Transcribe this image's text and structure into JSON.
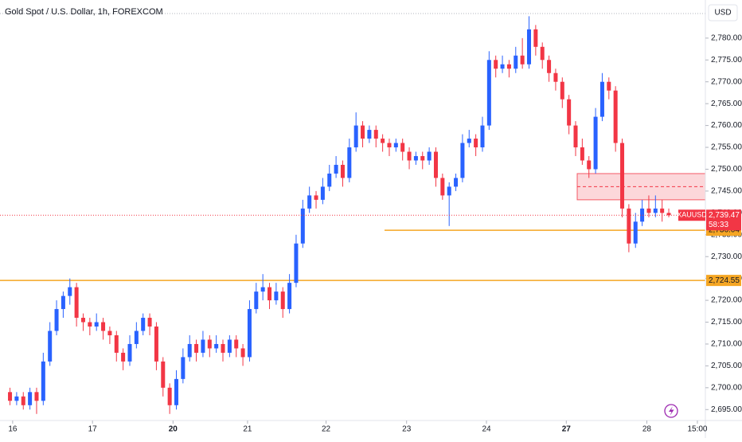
{
  "chart_data": {
    "type": "candlestick",
    "title": "Gold Spot / U.S. Dollar, 1h, FOREXCOM",
    "currency": "USD",
    "up_color": "#2962ff",
    "down_color": "#f23645",
    "grid": false,
    "ylim": [
      2692.5,
      2788.5
    ],
    "xlim": [
      -1.5,
      104.5
    ],
    "yticks": [
      {
        "value": 2695,
        "label": "2,695.00"
      },
      {
        "value": 2700,
        "label": "2,700.00"
      },
      {
        "value": 2705,
        "label": "2,705.00"
      },
      {
        "value": 2710,
        "label": "2,710.00"
      },
      {
        "value": 2715,
        "label": "2,715.00"
      },
      {
        "value": 2720,
        "label": "2,720.00"
      },
      {
        "value": 2725,
        "label": "2,725.00"
      },
      {
        "value": 2730,
        "label": "2,730.00"
      },
      {
        "value": 2735,
        "label": "2,735.00"
      },
      {
        "value": 2740,
        "label": "2,740.00"
      },
      {
        "value": 2745,
        "label": "2,745.00"
      },
      {
        "value": 2750,
        "label": "2,750.00"
      },
      {
        "value": 2755,
        "label": "2,755.00"
      },
      {
        "value": 2760,
        "label": "2,760.00"
      },
      {
        "value": 2765,
        "label": "2,765.00"
      },
      {
        "value": 2770,
        "label": "2,770.00"
      },
      {
        "value": 2775,
        "label": "2,775.00"
      },
      {
        "value": 2780,
        "label": "2,780.00"
      }
    ],
    "xticks": [
      {
        "value": 0.4,
        "label": "16"
      },
      {
        "value": 12.4,
        "label": "17"
      },
      {
        "value": 24.5,
        "label": "20",
        "bold": true
      },
      {
        "value": 35.7,
        "label": "21"
      },
      {
        "value": 47.5,
        "label": "22"
      },
      {
        "value": 59.6,
        "label": "23"
      },
      {
        "value": 71.6,
        "label": "24"
      },
      {
        "value": 83.6,
        "label": "27",
        "bold": true
      },
      {
        "value": 95.7,
        "label": "28"
      },
      {
        "value": 103.3,
        "label": "15:00"
      }
    ],
    "ohlc": [
      [
        2699,
        2700,
        2696,
        2697
      ],
      [
        2697,
        2699,
        2696,
        2698
      ],
      [
        2698,
        2699,
        2695,
        2696
      ],
      [
        2696,
        2700,
        2695,
        2699
      ],
      [
        2699,
        2700,
        2694,
        2697
      ],
      [
        2697,
        2708,
        2696,
        2706
      ],
      [
        2706,
        2715,
        2705,
        2713
      ],
      [
        2713,
        2720,
        2712,
        2718
      ],
      [
        2718,
        2722,
        2716,
        2721
      ],
      [
        2721,
        2725,
        2719,
        2723
      ],
      [
        2723,
        2724,
        2714,
        2716
      ],
      [
        2716,
        2717,
        2713,
        2715
      ],
      [
        2715,
        2716,
        2712,
        2714
      ],
      [
        2714,
        2717,
        2713,
        2715
      ],
      [
        2715,
        2716,
        2711,
        2713
      ],
      [
        2713,
        2714,
        2710,
        2712
      ],
      [
        2712,
        2713,
        2706,
        2708
      ],
      [
        2708,
        2709,
        2704,
        2706
      ],
      [
        2706,
        2712,
        2705,
        2710
      ],
      [
        2710,
        2715,
        2709,
        2713
      ],
      [
        2713,
        2717,
        2712,
        2716
      ],
      [
        2716,
        2717,
        2712,
        2714
      ],
      [
        2714,
        2715,
        2704,
        2706
      ],
      [
        2706,
        2707,
        2698,
        2700
      ],
      [
        2700,
        2701,
        2694,
        2696
      ],
      [
        2696,
        2704,
        2695,
        2702
      ],
      [
        2702,
        2709,
        2701,
        2707
      ],
      [
        2707,
        2712,
        2706,
        2710
      ],
      [
        2710,
        2711,
        2706,
        2708
      ],
      [
        2708,
        2713,
        2707,
        2711
      ],
      [
        2711,
        2712,
        2707,
        2709
      ],
      [
        2709,
        2712,
        2708,
        2710
      ],
      [
        2710,
        2711,
        2706,
        2708
      ],
      [
        2708,
        2712,
        2707,
        2711
      ],
      [
        2711,
        2712,
        2707,
        2709
      ],
      [
        2709,
        2710,
        2705,
        2707
      ],
      [
        2707,
        2720,
        2706,
        2718
      ],
      [
        2718,
        2724,
        2717,
        2722
      ],
      [
        2722,
        2726,
        2720,
        2723
      ],
      [
        2723,
        2724,
        2718,
        2720
      ],
      [
        2720,
        2724,
        2719,
        2722
      ],
      [
        2722,
        2723,
        2716,
        2718
      ],
      [
        2718,
        2726,
        2717,
        2724
      ],
      [
        2724,
        2735,
        2723,
        2733
      ],
      [
        2733,
        2743,
        2732,
        2741
      ],
      [
        2741,
        2746,
        2740,
        2744
      ],
      [
        2744,
        2745,
        2741,
        2743
      ],
      [
        2743,
        2748,
        2742,
        2746
      ],
      [
        2746,
        2751,
        2745,
        2749
      ],
      [
        2749,
        2753,
        2748,
        2751
      ],
      [
        2751,
        2752,
        2746,
        2748
      ],
      [
        2748,
        2757,
        2747,
        2755
      ],
      [
        2755,
        2763,
        2754,
        2760
      ],
      [
        2760,
        2761,
        2755,
        2757
      ],
      [
        2757,
        2760,
        2756,
        2759
      ],
      [
        2759,
        2760,
        2755,
        2757
      ],
      [
        2757,
        2758,
        2754,
        2756
      ],
      [
        2756,
        2757,
        2753,
        2755
      ],
      [
        2755,
        2757,
        2754,
        2756
      ],
      [
        2756,
        2757,
        2752,
        2754
      ],
      [
        2754,
        2755,
        2750,
        2752
      ],
      [
        2752,
        2754,
        2751,
        2753
      ],
      [
        2753,
        2754,
        2750,
        2752
      ],
      [
        2752,
        2755,
        2751,
        2754
      ],
      [
        2754,
        2755,
        2746,
        2748
      ],
      [
        2748,
        2749,
        2743,
        2744
      ],
      [
        2744,
        2747,
        2737,
        2746
      ],
      [
        2746,
        2749,
        2745,
        2748
      ],
      [
        2748,
        2758,
        2747,
        2756
      ],
      [
        2756,
        2759,
        2755,
        2757
      ],
      [
        2757,
        2758,
        2753,
        2755
      ],
      [
        2755,
        2762,
        2754,
        2760
      ],
      [
        2760,
        2777,
        2759,
        2775
      ],
      [
        2775,
        2776,
        2771,
        2773
      ],
      [
        2773,
        2776,
        2772,
        2774
      ],
      [
        2774,
        2775,
        2771,
        2773
      ],
      [
        2773,
        2778,
        2772,
        2776
      ],
      [
        2776,
        2780,
        2773,
        2774
      ],
      [
        2774,
        2785,
        2773,
        2782
      ],
      [
        2782,
        2783,
        2776,
        2778
      ],
      [
        2778,
        2779,
        2773,
        2775
      ],
      [
        2775,
        2776,
        2770,
        2772
      ],
      [
        2772,
        2773,
        2768,
        2770
      ],
      [
        2770,
        2771,
        2764,
        2766
      ],
      [
        2766,
        2767,
        2758,
        2760
      ],
      [
        2760,
        2761,
        2753,
        2755
      ],
      [
        2755,
        2757,
        2751,
        2752
      ],
      [
        2752,
        2753,
        2748,
        2750
      ],
      [
        2750,
        2764,
        2749,
        2762
      ],
      [
        2762,
        2772,
        2761,
        2770
      ],
      [
        2770,
        2771,
        2766,
        2768
      ],
      [
        2768,
        2769,
        2754,
        2756
      ],
      [
        2756,
        2757,
        2739,
        2741
      ],
      [
        2741,
        2742,
        2731,
        2733
      ],
      [
        2733,
        2740,
        2732,
        2738
      ],
      [
        2738,
        2743,
        2737,
        2741
      ],
      [
        2741,
        2744,
        2739,
        2740
      ],
      [
        2740,
        2744,
        2739,
        2741
      ],
      [
        2741,
        2743,
        2738,
        2740
      ],
      [
        2740,
        2741,
        2739,
        2739.47
      ]
    ],
    "price_lines": [
      {
        "value": 2736.04,
        "label": "2,736.04",
        "color": "#f5a623"
      },
      {
        "value": 2724.55,
        "label": "2,724.55",
        "color": "#f5a623"
      }
    ],
    "zone": {
      "low": 2743,
      "high": 2749,
      "color": "#f23645"
    },
    "last_price": {
      "value": 2739.47,
      "label": "2,739.47",
      "countdown": "58:33",
      "symbol": "XAUUSD"
    }
  }
}
